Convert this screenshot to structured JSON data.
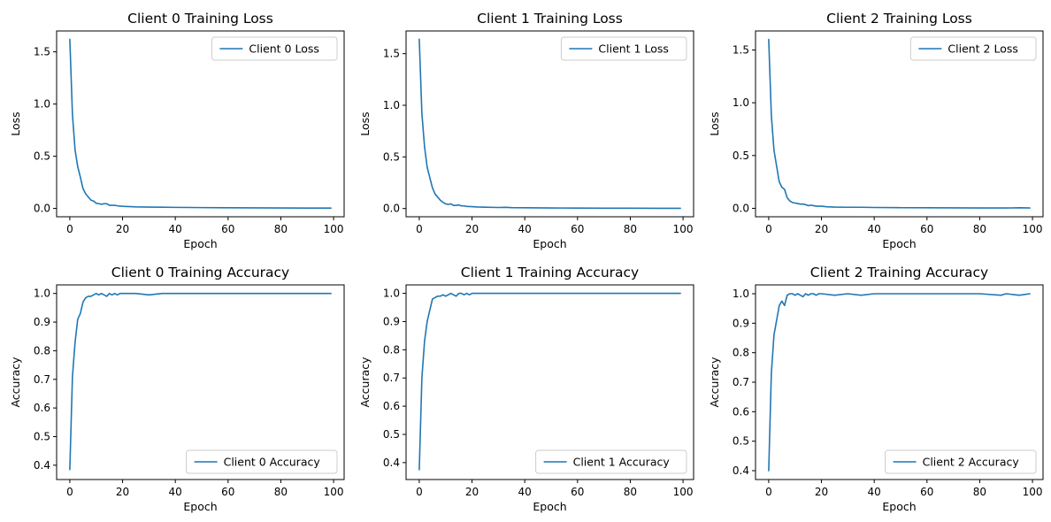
{
  "figure": {
    "line_color": "#1f77b4",
    "background": "#ffffff"
  },
  "chart_data": [
    {
      "type": "line",
      "title": "Client 0 Training Loss",
      "xlabel": "Epoch",
      "ylabel": "Loss",
      "xlim": [
        -5,
        104
      ],
      "ylim": [
        -0.08,
        1.7
      ],
      "xticks": [
        0,
        20,
        40,
        60,
        80,
        100
      ],
      "yticks": [
        0.0,
        0.5,
        1.0,
        1.5
      ],
      "legend_position": "upper-right",
      "grid": false,
      "series": [
        {
          "name": "Client 0 Loss",
          "x": [
            0,
            1,
            2,
            3,
            4,
            5,
            6,
            7,
            8,
            9,
            10,
            11,
            12,
            13,
            14,
            15,
            16,
            17,
            18,
            20,
            22,
            25,
            30,
            35,
            40,
            50,
            60,
            70,
            80,
            90,
            99
          ],
          "y": [
            1.62,
            0.9,
            0.56,
            0.4,
            0.3,
            0.19,
            0.14,
            0.11,
            0.08,
            0.07,
            0.05,
            0.045,
            0.04,
            0.045,
            0.045,
            0.03,
            0.03,
            0.03,
            0.025,
            0.02,
            0.018,
            0.015,
            0.013,
            0.012,
            0.01,
            0.008,
            0.006,
            0.005,
            0.004,
            0.003,
            0.003
          ]
        }
      ]
    },
    {
      "type": "line",
      "title": "Client 1 Training Loss",
      "xlabel": "Epoch",
      "ylabel": "Loss",
      "xlim": [
        -5,
        104
      ],
      "ylim": [
        -0.08,
        1.72
      ],
      "xticks": [
        0,
        20,
        40,
        60,
        80,
        100
      ],
      "yticks": [
        0.0,
        0.5,
        1.0,
        1.5
      ],
      "legend_position": "upper-right",
      "grid": false,
      "series": [
        {
          "name": "Client 1 Loss",
          "x": [
            0,
            1,
            2,
            3,
            4,
            5,
            6,
            7,
            8,
            9,
            10,
            11,
            12,
            13,
            14,
            15,
            16,
            17,
            18,
            20,
            22,
            25,
            30,
            33,
            35,
            40,
            50,
            60,
            70,
            80,
            90,
            99
          ],
          "y": [
            1.64,
            0.92,
            0.6,
            0.4,
            0.3,
            0.2,
            0.14,
            0.11,
            0.08,
            0.06,
            0.045,
            0.04,
            0.045,
            0.03,
            0.03,
            0.035,
            0.025,
            0.025,
            0.02,
            0.018,
            0.015,
            0.013,
            0.01,
            0.012,
            0.008,
            0.007,
            0.005,
            0.004,
            0.003,
            0.003,
            0.002,
            0.002
          ]
        }
      ]
    },
    {
      "type": "line",
      "title": "Client 2 Training Loss",
      "xlabel": "Epoch",
      "ylabel": "Loss",
      "xlim": [
        -5,
        104
      ],
      "ylim": [
        -0.08,
        1.68
      ],
      "xticks": [
        0,
        20,
        40,
        60,
        80,
        100
      ],
      "yticks": [
        0.0,
        0.5,
        1.0,
        1.5
      ],
      "legend_position": "upper-right",
      "grid": false,
      "series": [
        {
          "name": "Client 2 Loss",
          "x": [
            0,
            1,
            2,
            3,
            4,
            5,
            6,
            7,
            8,
            9,
            10,
            11,
            12,
            13,
            14,
            15,
            16,
            17,
            18,
            20,
            22,
            25,
            30,
            35,
            40,
            50,
            60,
            70,
            80,
            90,
            95,
            99
          ],
          "y": [
            1.6,
            0.88,
            0.55,
            0.4,
            0.25,
            0.2,
            0.18,
            0.1,
            0.07,
            0.055,
            0.05,
            0.045,
            0.04,
            0.04,
            0.035,
            0.025,
            0.03,
            0.025,
            0.02,
            0.02,
            0.015,
            0.012,
            0.01,
            0.01,
            0.008,
            0.006,
            0.005,
            0.004,
            0.003,
            0.003,
            0.005,
            0.003
          ]
        }
      ]
    },
    {
      "type": "line",
      "title": "Client 0 Training Accuracy",
      "xlabel": "Epoch",
      "ylabel": "Accuracy",
      "xlim": [
        -5,
        104
      ],
      "ylim": [
        0.35,
        1.03
      ],
      "xticks": [
        0,
        20,
        40,
        60,
        80,
        100
      ],
      "yticks": [
        0.4,
        0.5,
        0.6,
        0.7,
        0.8,
        0.9,
        1.0
      ],
      "legend_position": "lower-right",
      "grid": false,
      "series": [
        {
          "name": "Client 0 Accuracy",
          "x": [
            0,
            1,
            2,
            3,
            4,
            5,
            6,
            7,
            8,
            9,
            10,
            11,
            12,
            13,
            14,
            15,
            16,
            17,
            18,
            19,
            20,
            25,
            30,
            35,
            40,
            45,
            50,
            60,
            70,
            80,
            90,
            99
          ],
          "y": [
            0.385,
            0.71,
            0.83,
            0.91,
            0.93,
            0.97,
            0.985,
            0.99,
            0.99,
            0.995,
            1.0,
            0.995,
            1.0,
            0.995,
            0.99,
            1.0,
            0.995,
            1.0,
            0.995,
            1.0,
            1.0,
            1.0,
            0.995,
            1.0,
            1.0,
            1.0,
            1.0,
            1.0,
            1.0,
            1.0,
            1.0,
            1.0
          ]
        }
      ]
    },
    {
      "type": "line",
      "title": "Client 1 Training Accuracy",
      "xlabel": "Epoch",
      "ylabel": "Accuracy",
      "xlim": [
        -5,
        104
      ],
      "ylim": [
        0.34,
        1.03
      ],
      "xticks": [
        0,
        20,
        40,
        60,
        80,
        100
      ],
      "yticks": [
        0.4,
        0.5,
        0.6,
        0.7,
        0.8,
        0.9,
        1.0
      ],
      "legend_position": "lower-right",
      "grid": false,
      "series": [
        {
          "name": "Client 1 Accuracy",
          "x": [
            0,
            1,
            2,
            3,
            4,
            5,
            6,
            7,
            8,
            9,
            10,
            11,
            12,
            13,
            14,
            15,
            16,
            17,
            18,
            19,
            20,
            25,
            30,
            35,
            40,
            45,
            50,
            60,
            70,
            80,
            90,
            99
          ],
          "y": [
            0.375,
            0.7,
            0.83,
            0.9,
            0.94,
            0.98,
            0.985,
            0.99,
            0.99,
            0.995,
            0.99,
            0.995,
            1.0,
            0.995,
            0.99,
            1.0,
            1.0,
            0.995,
            1.0,
            0.995,
            1.0,
            1.0,
            1.0,
            1.0,
            1.0,
            1.0,
            1.0,
            1.0,
            1.0,
            1.0,
            1.0,
            1.0
          ]
        }
      ]
    },
    {
      "type": "line",
      "title": "Client 2 Training Accuracy",
      "xlabel": "Epoch",
      "ylabel": "Accuracy",
      "xlim": [
        -5,
        104
      ],
      "ylim": [
        0.37,
        1.03
      ],
      "xticks": [
        0,
        20,
        40,
        60,
        80,
        100
      ],
      "yticks": [
        0.4,
        0.5,
        0.6,
        0.7,
        0.8,
        0.9,
        1.0
      ],
      "legend_position": "lower-right",
      "grid": false,
      "series": [
        {
          "name": "Client 2 Accuracy",
          "x": [
            0,
            1,
            2,
            3,
            4,
            5,
            6,
            7,
            8,
            9,
            10,
            11,
            12,
            13,
            14,
            15,
            16,
            17,
            18,
            19,
            20,
            25,
            30,
            35,
            40,
            45,
            50,
            60,
            70,
            80,
            88,
            90,
            95,
            99
          ],
          "y": [
            0.4,
            0.73,
            0.86,
            0.91,
            0.96,
            0.975,
            0.96,
            0.995,
            1.0,
            1.0,
            0.995,
            1.0,
            0.995,
            0.99,
            1.0,
            0.995,
            1.0,
            1.0,
            0.995,
            1.0,
            1.0,
            0.995,
            1.0,
            0.995,
            1.0,
            1.0,
            1.0,
            1.0,
            1.0,
            1.0,
            0.995,
            1.0,
            0.995,
            1.0
          ]
        }
      ]
    }
  ]
}
